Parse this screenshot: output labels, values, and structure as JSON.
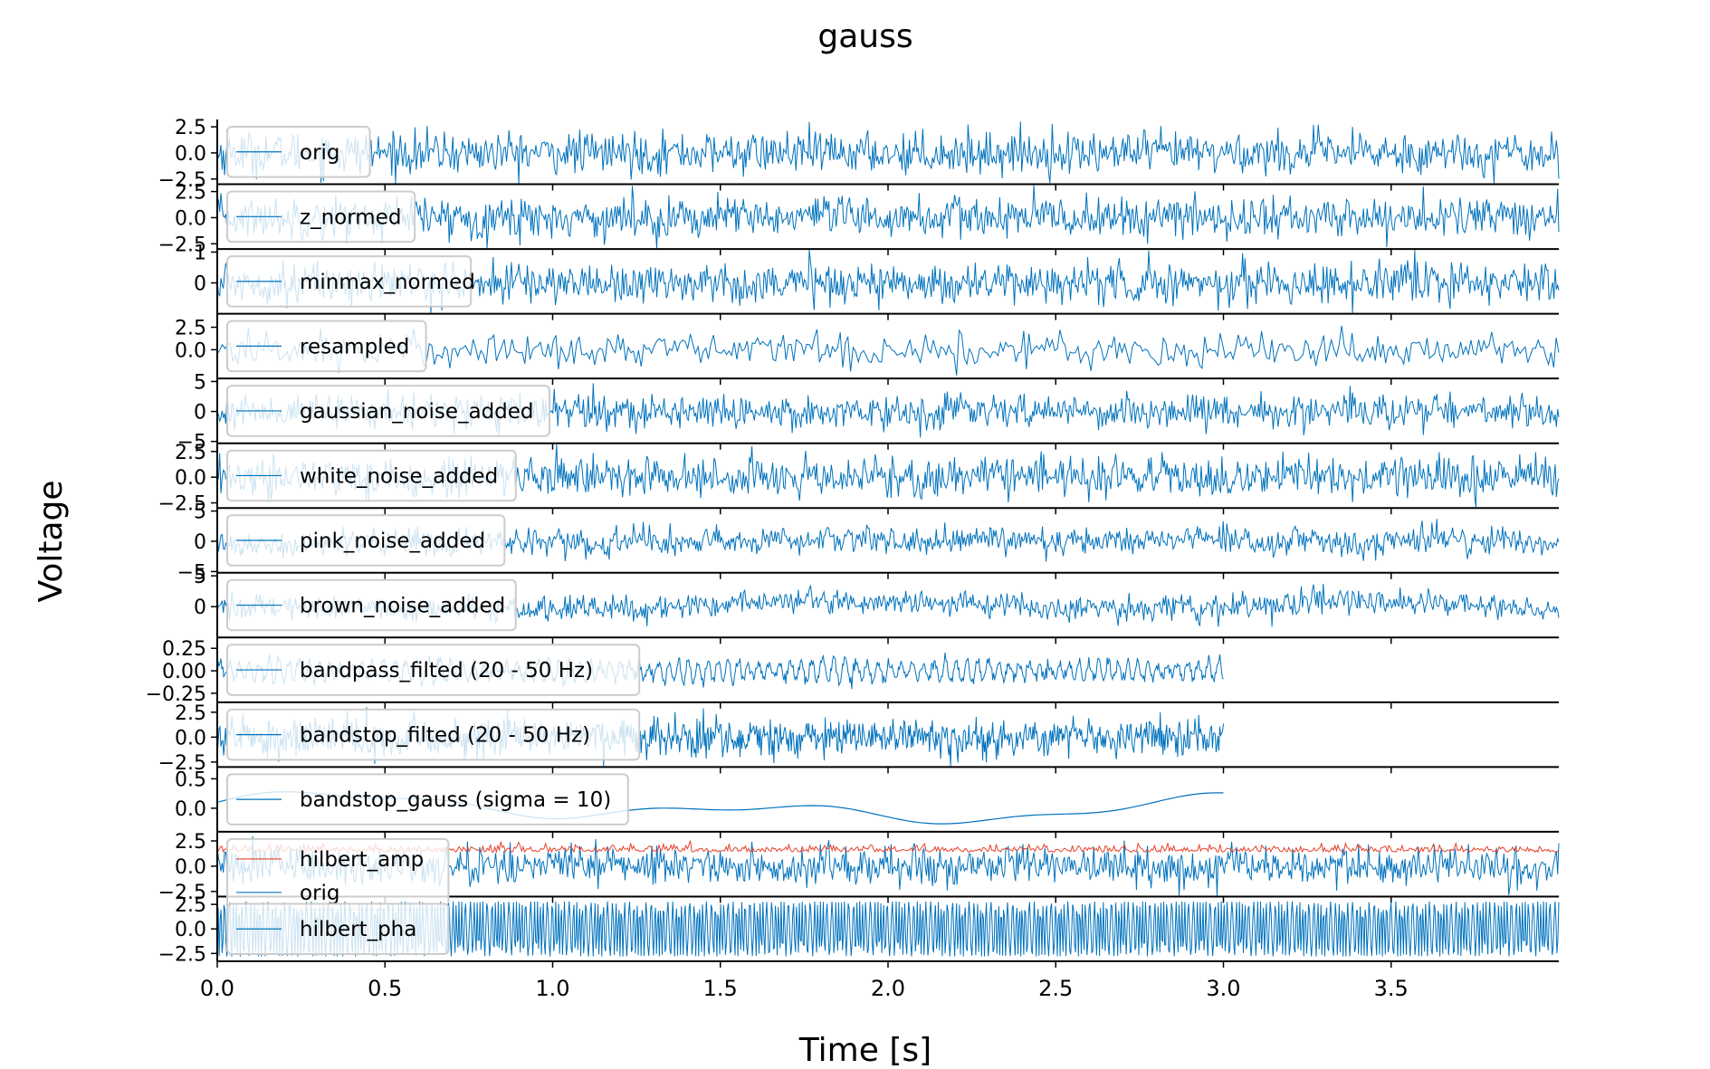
{
  "chart_data": {
    "type": "line",
    "title": "gauss",
    "xlabel": "Time [s]",
    "ylabel": "Voltage",
    "xlim": [
      0.0,
      4.0
    ],
    "xticks": [
      0.0,
      0.5,
      1.0,
      1.5,
      2.0,
      2.5,
      3.0,
      3.5
    ],
    "xtick_labels": [
      "0.0",
      "0.5",
      "1.0",
      "1.5",
      "2.0",
      "2.5",
      "3.0",
      "3.5"
    ],
    "grid": false,
    "legend_placement": "left",
    "colors": {
      "line": "#0072bd",
      "amp": "#e8402a",
      "axis": "#000000"
    },
    "series": [
      {
        "name": "orig",
        "ylim": [
          -3,
          3.2
        ],
        "yticks": [
          2.5,
          0.0,
          -2.5
        ],
        "ytick_labels": [
          "2.5",
          "0.0",
          "−2.5"
        ],
        "x_end": 4.0,
        "amplitude": 1.0,
        "kind": "noise"
      },
      {
        "name": "z_normed",
        "ylim": [
          -3,
          3.2
        ],
        "yticks": [
          2.5,
          0.0,
          -2.5
        ],
        "ytick_labels": [
          "2.5",
          "0.0",
          "−2.5"
        ],
        "x_end": 4.0,
        "amplitude": 1.0,
        "kind": "noise"
      },
      {
        "name": "minmax_normed",
        "ylim": [
          -1.0,
          1.1
        ],
        "yticks": [
          1,
          0
        ],
        "ytick_labels": [
          "1",
          "0"
        ],
        "x_end": 4.0,
        "amplitude": 0.33,
        "kind": "noise"
      },
      {
        "name": "resampled",
        "ylim": [
          -3.2,
          4.0
        ],
        "yticks": [
          2.5,
          0.0
        ],
        "ytick_labels": [
          "2.5",
          "0.0"
        ],
        "x_end": 4.0,
        "amplitude": 1.0,
        "kind": "sparse"
      },
      {
        "name": "gaussian_noise_added",
        "ylim": [
          -5.3,
          5.5
        ],
        "yticks": [
          5,
          0,
          -5
        ],
        "ytick_labels": [
          "5",
          "0",
          "−5"
        ],
        "x_end": 4.0,
        "amplitude": 1.4,
        "kind": "noise"
      },
      {
        "name": "white_noise_added",
        "ylim": [
          -3.0,
          3.3
        ],
        "yticks": [
          2.5,
          0.0,
          -2.5
        ],
        "ytick_labels": [
          "2.5",
          "0.0",
          "−2.5"
        ],
        "x_end": 4.0,
        "amplitude": 1.0,
        "kind": "noise"
      },
      {
        "name": "pink_noise_added",
        "ylim": [
          -5.2,
          5.5
        ],
        "yticks": [
          5,
          0,
          -5
        ],
        "ytick_labels": [
          "5",
          "0",
          "−5"
        ],
        "x_end": 4.0,
        "amplitude": 1.1,
        "kind": "pink"
      },
      {
        "name": "brown_noise_added",
        "ylim": [
          -5.0,
          5.5
        ],
        "yticks": [
          5,
          0
        ],
        "ytick_labels": [
          "5",
          "0"
        ],
        "x_end": 4.0,
        "amplitude": 1.0,
        "kind": "brown"
      },
      {
        "name": "bandpass_filted (20 - 50 Hz)",
        "ylim": [
          -0.35,
          0.37
        ],
        "yticks": [
          0.25,
          0.0,
          -0.25
        ],
        "ytick_labels": [
          "0.25",
          "0.00",
          "−0.25"
        ],
        "x_end": 3.0,
        "amplitude": 0.1,
        "kind": "band"
      },
      {
        "name": "bandstop_filted (20 - 50 Hz)",
        "ylim": [
          -3.0,
          3.5
        ],
        "yticks": [
          2.5,
          0.0,
          -2.5
        ],
        "ytick_labels": [
          "2.5",
          "0.0",
          "−2.5"
        ],
        "x_end": 3.0,
        "amplitude": 0.95,
        "kind": "noise"
      },
      {
        "name": "bandstop_gauss (sigma = 10)",
        "ylim": [
          -0.4,
          0.7
        ],
        "yticks": [
          0.5,
          0.0
        ],
        "ytick_labels": [
          "0.5",
          "0.0"
        ],
        "x_end": 3.0,
        "amplitude": 0.2,
        "kind": "smooth"
      },
      {
        "name": "hilbert_amp",
        "second_name": "orig",
        "ylim": [
          -3.0,
          3.4
        ],
        "yticks": [
          2.5,
          0.0,
          -2.5
        ],
        "ytick_labels": [
          "2.5",
          "0.0",
          "−2.5"
        ],
        "x_end": 4.0,
        "amplitude": 1.0,
        "kind": "amp"
      },
      {
        "name": "hilbert_pha",
        "ylim": [
          -3.3,
          3.3
        ],
        "yticks": [
          2.5,
          0.0,
          -2.5
        ],
        "ytick_labels": [
          "2.5",
          "0.0",
          "−2.5"
        ],
        "x_end": 4.0,
        "amplitude": 2.8,
        "kind": "phase"
      }
    ]
  }
}
